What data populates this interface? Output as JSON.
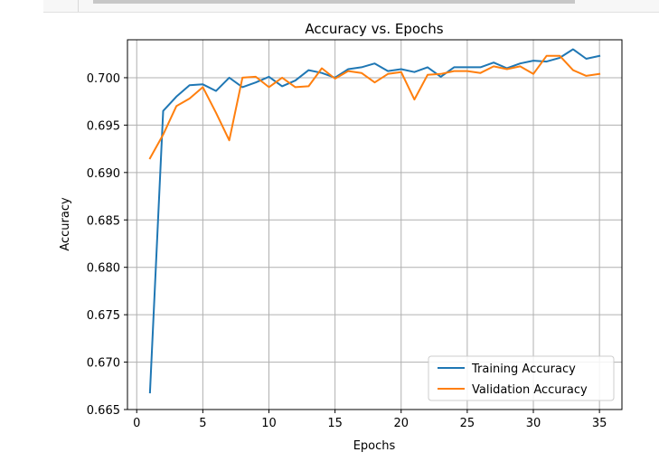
{
  "chart_data": {
    "type": "line",
    "title": "Accuracy vs. Epochs",
    "xlabel": "Epochs",
    "ylabel": "Accuracy",
    "xlim": [
      -0.7,
      36.7
    ],
    "ylim": [
      0.665,
      0.704
    ],
    "xticks": [
      0,
      5,
      10,
      15,
      20,
      25,
      30,
      35
    ],
    "yticks": [
      0.665,
      0.67,
      0.675,
      0.68,
      0.685,
      0.69,
      0.695,
      0.7
    ],
    "ytick_labels": [
      "0.665",
      "0.670",
      "0.675",
      "0.680",
      "0.685",
      "0.690",
      "0.695",
      "0.700"
    ],
    "grid": true,
    "legend_position": "lower-right",
    "x": [
      1,
      2,
      3,
      4,
      5,
      6,
      7,
      8,
      9,
      10,
      11,
      12,
      13,
      14,
      15,
      16,
      17,
      18,
      19,
      20,
      21,
      22,
      23,
      24,
      25,
      26,
      27,
      28,
      29,
      30,
      31,
      32,
      33,
      34,
      35
    ],
    "series": [
      {
        "name": "Training Accuracy",
        "color": "#1f77b4",
        "values": [
          0.6668,
          0.6965,
          0.698,
          0.6992,
          0.6993,
          0.6986,
          0.7,
          0.699,
          0.6995,
          0.7001,
          0.6991,
          0.6997,
          0.7008,
          0.7005,
          0.7,
          0.7009,
          0.7011,
          0.7015,
          0.7007,
          0.7009,
          0.7006,
          0.7011,
          0.7001,
          0.7011,
          0.7011,
          0.7011,
          0.7016,
          0.701,
          0.7015,
          0.7018,
          0.7017,
          0.7021,
          0.703,
          0.702,
          0.7023
        ]
      },
      {
        "name": "Validation Accuracy",
        "color": "#ff7f0e",
        "values": [
          0.6915,
          0.694,
          0.697,
          0.6978,
          0.699,
          0.6963,
          0.6934,
          0.7,
          0.7001,
          0.699,
          0.7,
          0.699,
          0.6991,
          0.701,
          0.6999,
          0.7007,
          0.7005,
          0.6995,
          0.7004,
          0.7006,
          0.6977,
          0.7003,
          0.7004,
          0.7007,
          0.7007,
          0.7005,
          0.7012,
          0.7009,
          0.7012,
          0.7004,
          0.7023,
          0.7023,
          0.7008,
          0.7002,
          0.7004
        ]
      }
    ]
  }
}
